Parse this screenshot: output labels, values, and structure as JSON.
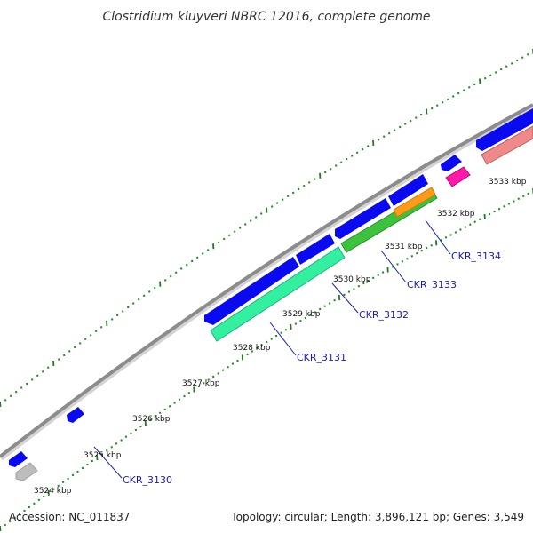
{
  "title": "Clostridium kluyveri NBRC 12016, complete genome",
  "footer": {
    "accession": "Accession: NC_011837",
    "topology": "Topology: circular; Length: 3,896,121 bp; Genes: 3,549"
  },
  "kbp_labels": [
    "3524 kbp",
    "3525 kbp",
    "3526 kbp",
    "3527 kbp",
    "3528 kbp",
    "3529 kbp",
    "3530 kbp",
    "3531 kbp",
    "3532 kbp",
    "3533 kbp"
  ],
  "gene_labels": [
    "CKR_3130",
    "CKR_3131",
    "CKR_3132",
    "CKR_3133",
    "CKR_3134"
  ],
  "colors": {
    "backbone": "#8c8c8c",
    "cds_blue": "#0a0af0",
    "gene_3130": "#bdbdbd",
    "gene_3131": "#33f0a0",
    "gene_3132": "#3cc23c",
    "gene_3133": "#ff9a1a",
    "gene_3134": "#ff1aa8",
    "gene_partial": "#f08a8a",
    "tick_major": "#1f7a1f",
    "tick_minor": "#1f8a1f",
    "leader": "#1a1ab0"
  }
}
